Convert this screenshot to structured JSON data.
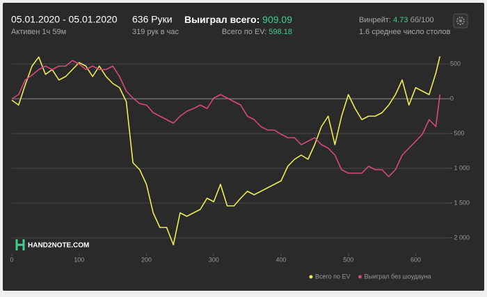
{
  "header": {
    "date_range": "05.01.2020 - 05.01.2020",
    "active": "Активен 1ч 59м",
    "hands": "636 Руки",
    "hands_per_hour": "319 рук в час",
    "won_label": "Выиграл всего:",
    "won_value": "909.09",
    "ev_label": "Всего по EV:",
    "ev_value": "598.18",
    "winrate_label": "Винрейт:",
    "winrate_value": "4.73",
    "winrate_unit": "бб/100",
    "tables": "1.6 среднее число столов",
    "logo": "HAND2NOTE.COM"
  },
  "chart_data": {
    "type": "line",
    "x": [
      0,
      10,
      20,
      30,
      40,
      50,
      60,
      70,
      80,
      90,
      100,
      110,
      120,
      130,
      140,
      150,
      160,
      170,
      180,
      190,
      200,
      210,
      220,
      230,
      240,
      250,
      260,
      270,
      280,
      290,
      300,
      310,
      320,
      330,
      340,
      350,
      360,
      370,
      380,
      390,
      400,
      410,
      420,
      430,
      440,
      450,
      460,
      470,
      480,
      490,
      500,
      510,
      520,
      530,
      540,
      550,
      560,
      570,
      580,
      590,
      600,
      610,
      620,
      630,
      636
    ],
    "series": [
      {
        "name": "Всего по EV",
        "color": "#eeee55",
        "values": [
          -20,
          -90,
          200,
          470,
          600,
          350,
          420,
          270,
          320,
          420,
          520,
          470,
          320,
          470,
          320,
          220,
          160,
          -40,
          -920,
          -1020,
          -1230,
          -1640,
          -1850,
          -1850,
          -2100,
          -1640,
          -1690,
          -1640,
          -1590,
          -1430,
          -1480,
          -1230,
          -1540,
          -1540,
          -1430,
          -1330,
          -1380,
          -1330,
          -1280,
          -1230,
          -1180,
          -970,
          -870,
          -810,
          -870,
          -660,
          -400,
          -250,
          -660,
          -250,
          60,
          -140,
          -300,
          -250,
          -250,
          -200,
          -90,
          60,
          270,
          -90,
          160,
          110,
          60,
          370,
          610
        ]
      },
      {
        "name": "Выиграл без шоудауна",
        "color": "#d9487c",
        "values": [
          0,
          60,
          270,
          340,
          420,
          470,
          420,
          470,
          470,
          550,
          500,
          420,
          470,
          420,
          420,
          470,
          320,
          110,
          10,
          -70,
          -90,
          -200,
          -250,
          -300,
          -350,
          -250,
          -180,
          -140,
          -90,
          -140,
          10,
          60,
          10,
          -40,
          -90,
          -250,
          -300,
          -400,
          -450,
          -450,
          -510,
          -560,
          -560,
          -660,
          -610,
          -560,
          -660,
          -710,
          -810,
          -1020,
          -1070,
          -1070,
          -1070,
          -970,
          -1020,
          -1020,
          -1120,
          -1020,
          -810,
          -710,
          -610,
          -510,
          -300,
          -400,
          60
        ]
      }
    ],
    "xlim": [
      0,
      645
    ],
    "xticks": [
      0,
      100,
      200,
      300,
      400,
      500,
      600
    ],
    "ylim": [
      -2230,
      700
    ],
    "yticks": [
      500,
      0,
      {
        "value": -500,
        "label": "- 500"
      },
      {
        "value": -1000,
        "label": "- 1 000"
      },
      {
        "value": -1500,
        "label": "- 1 500"
      },
      {
        "value": -2000,
        "label": "- 2 000"
      }
    ],
    "grid": true,
    "legend": "bottom-right"
  }
}
